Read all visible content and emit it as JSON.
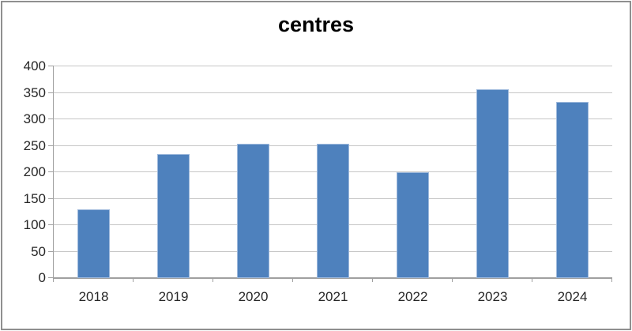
{
  "chart_data": {
    "type": "bar",
    "title": "centres",
    "xlabel": "",
    "ylabel": "",
    "categories": [
      "2018",
      "2019",
      "2020",
      "2021",
      "2022",
      "2023",
      "2024"
    ],
    "values": [
      130,
      235,
      253,
      253,
      200,
      357,
      333
    ],
    "y_ticks": [
      "0",
      "50",
      "100",
      "150",
      "200",
      "250",
      "300",
      "350",
      "400"
    ],
    "ylim": [
      0,
      400
    ],
    "y_step": 50,
    "grid": true,
    "legend": "none",
    "colors": {
      "bar_fill": "#4E81BD",
      "bar_border": "#9EB9DC",
      "gridline": "#C6C6C6",
      "axis": "#A0A0A0",
      "label": "#262626",
      "title": "#000000",
      "frame_border": "#8F8F8F",
      "background": "#FFFFFF"
    }
  }
}
